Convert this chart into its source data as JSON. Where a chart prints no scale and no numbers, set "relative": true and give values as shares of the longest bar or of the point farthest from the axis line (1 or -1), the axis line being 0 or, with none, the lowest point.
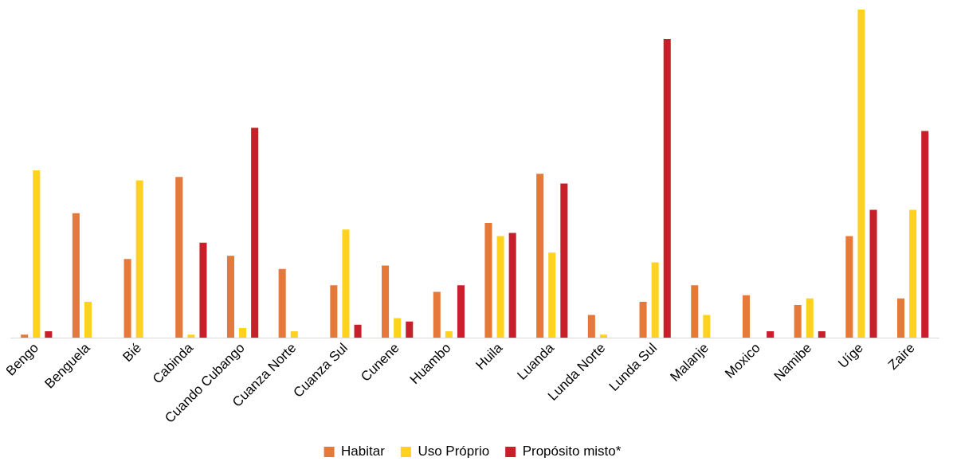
{
  "chart_data": {
    "type": "bar",
    "relative": true,
    "legend": "bottom",
    "grid": false,
    "categories": [
      "Bengo",
      "Benguela",
      "Bié",
      "Cabinda",
      "Cuando Cubango",
      "Cuanza Norte",
      "Cuanza Sul",
      "Cunene",
      "Huambo",
      "Huila",
      "Luanda",
      "Lunda Norte",
      "Lunda Sul",
      "Malanje",
      "Moxico",
      "Namibe",
      "Uíge",
      "Zaire"
    ],
    "series": [
      {
        "name": "Habitar",
        "color": "#e5793a",
        "values": [
          0.01,
          0.38,
          0.24,
          0.49,
          0.25,
          0.21,
          0.16,
          0.22,
          0.14,
          0.35,
          0.5,
          0.07,
          0.11,
          0.16,
          0.13,
          0.1,
          0.31,
          0.12
        ]
      },
      {
        "name": "Uso Próprio",
        "color": "#ffd21f",
        "values": [
          0.51,
          0.11,
          0.48,
          0.01,
          0.03,
          0.02,
          0.33,
          0.06,
          0.02,
          0.31,
          0.26,
          0.01,
          0.23,
          0.07,
          0,
          0.12,
          1,
          0.39
        ]
      },
      {
        "name": "Propósito misto*",
        "color": "#c8202a",
        "values": [
          0.02,
          0,
          0,
          0.29,
          0.64,
          0,
          0.04,
          0.05,
          0.16,
          0.32,
          0.47,
          0,
          0.91,
          0,
          0.02,
          0.02,
          0.39,
          0.63
        ]
      }
    ]
  }
}
